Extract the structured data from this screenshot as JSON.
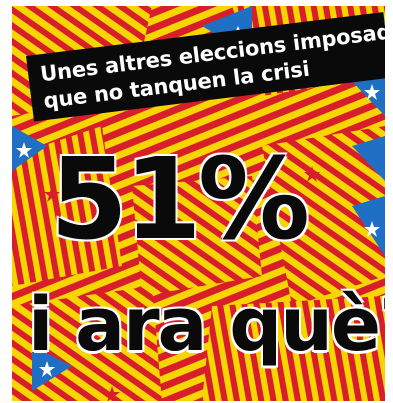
{
  "banner": {
    "line1": "Unes altres eleccions imposades",
    "line2": "que no tanquen la crisi"
  },
  "headline": {
    "value": "51%",
    "question": "i ara què?"
  },
  "colors": {
    "yellow": "#f6d500",
    "red": "#d81e2a",
    "blue": "#1f6fc4",
    "star": "#ffffff",
    "text": "#0a0a0a"
  },
  "background_icon": "estelada-flag-collage"
}
